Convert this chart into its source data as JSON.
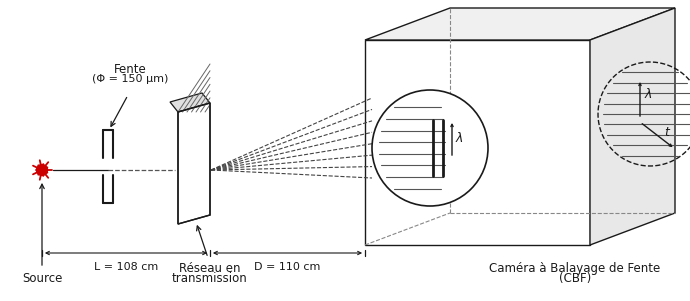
{
  "bg_color": "#ffffff",
  "line_color": "#1a1a1a",
  "source_color": "#cc0000",
  "labels": {
    "fente": "Fente",
    "fente_sub": "(Φ = 150 μm)",
    "source": "Source",
    "reseau_line1": "Réseau en",
    "reseau_line2": "transmission",
    "D_label": "D = 110 cm",
    "L_label": "L = 108 cm",
    "cbf_line1": "Caméra à Balayage de Fente",
    "cbf_line2": "(CBF)",
    "lambda_sym": "λ",
    "t_sym": "t"
  },
  "figsize": [
    6.9,
    3.01
  ],
  "dpi": 100
}
